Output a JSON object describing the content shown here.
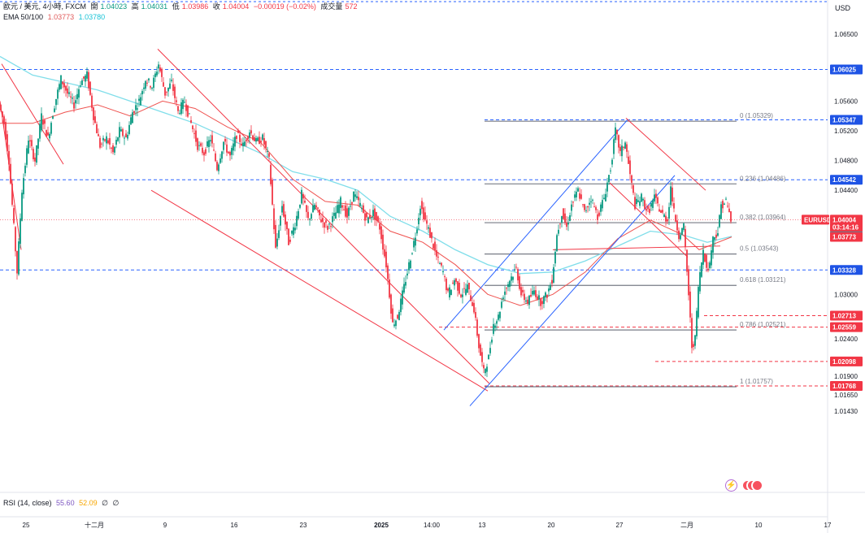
{
  "header": {
    "symbol": "歐元 / 美元, 4小時, FXCM",
    "open_label": "開",
    "open": "1.04023",
    "high_label": "高",
    "high": "1.04031",
    "low_label": "低",
    "low": "1.03986",
    "close_label": "收",
    "close": "1.04004",
    "change": "−0.00019 (−0.02%)",
    "volume_label": "成交量",
    "volume": "572",
    "ema_label": "EMA 50/100",
    "ema50": "1.03773",
    "ema100": "1.03780",
    "currency": "USD"
  },
  "rsi": {
    "label": "RSI (14, close)",
    "value1": "55.60",
    "value2": "52.09",
    "value3": "∅",
    "value4": "∅"
  },
  "colors": {
    "up": "#089981",
    "down": "#f23645",
    "ema50": "#ef5350",
    "ema100": "#80deea",
    "trend_red": "#f23645",
    "trend_blue": "#2962ff",
    "level_blue": "#2962ff",
    "fib": "#787b86"
  },
  "icons": [
    "lightning-icon",
    "red-dots-icon"
  ],
  "chart_data": {
    "type": "candlestick",
    "symbol": "EURUSD",
    "timeframe": "4h",
    "ylim": [
      1.013,
      1.067
    ],
    "y_ticks": [
      "1.06500",
      "1.06025",
      "1.05600",
      "1.05347",
      "1.05200",
      "1.04800",
      "1.04542",
      "1.04400",
      "1.04004",
      "1.03780",
      "1.03773",
      "1.03328",
      "1.03000",
      "1.02713",
      "1.02559",
      "1.02400",
      "1.02098",
      "1.01900",
      "1.01768",
      "1.01650",
      "1.01430"
    ],
    "highlighted_labels": [
      {
        "text": "1.06025",
        "value": 1.06025,
        "color": "#1e53e5"
      },
      {
        "text": "1.05347",
        "value": 1.05347,
        "color": "#1e53e5"
      },
      {
        "text": "1.04542",
        "value": 1.04542,
        "color": "#1e53e5"
      },
      {
        "text": "EURUSD",
        "value": 1.04004,
        "color": "#f23645"
      },
      {
        "text": "1.04004",
        "value": 1.04004,
        "color": "#f23645"
      },
      {
        "text": "03:14:16",
        "value": 1.03905,
        "color": "#f23645"
      },
      {
        "text": "1.03780",
        "value": 1.0378,
        "color": "#00acc1"
      },
      {
        "text": "1.03773",
        "value": 1.03773,
        "color": "#f23645"
      },
      {
        "text": "1.03328",
        "value": 1.03328,
        "color": "#1e53e5"
      },
      {
        "text": "1.02713",
        "value": 1.02713,
        "color": "#f23645"
      },
      {
        "text": "1.02559",
        "value": 1.02559,
        "color": "#f23645"
      },
      {
        "text": "1.02098",
        "value": 1.02098,
        "color": "#f23645"
      },
      {
        "text": "1.01768",
        "value": 1.01768,
        "color": "#f23645"
      }
    ],
    "x_labels": [
      "25",
      "十二月",
      "9",
      "16",
      "23",
      "2025",
      "14:00",
      "13",
      "20",
      "27",
      "二月",
      "10",
      "17"
    ],
    "horizontal_levels": [
      {
        "value": 1.06025,
        "style": "dashed",
        "color": "#2962ff"
      },
      {
        "value": 1.05347,
        "style": "dashed",
        "color": "#2962ff"
      },
      {
        "value": 1.04542,
        "style": "dashed",
        "color": "#2962ff"
      },
      {
        "value": 1.03328,
        "style": "dashed",
        "color": "#2962ff"
      },
      {
        "value": 1.02713,
        "style": "dashed",
        "color": "#f23645"
      },
      {
        "value": 1.02559,
        "style": "dashed",
        "color": "#f23645"
      },
      {
        "value": 1.02098,
        "style": "dashed",
        "color": "#f23645"
      },
      {
        "value": 1.01768,
        "style": "dashed",
        "color": "#f23645"
      }
    ],
    "fibonacci": [
      {
        "ratio": "0",
        "label": "0 (1.05329)",
        "value": 1.05329
      },
      {
        "ratio": "0.236",
        "label": "0.236 (1.04486)",
        "value": 1.04486
      },
      {
        "ratio": "0.382",
        "label": "0.382 (1.03964)",
        "value": 1.03964
      },
      {
        "ratio": "0.5",
        "label": "0.5 (1.03543)",
        "value": 1.03543
      },
      {
        "ratio": "0.618",
        "label": "0.618 (1.03121)",
        "value": 1.03121
      },
      {
        "ratio": "0.786",
        "label": "0.786 (1.02521)",
        "value": 1.02521
      },
      {
        "ratio": "1",
        "label": "1 (1.01757)",
        "value": 1.01757
      }
    ],
    "price_path": [
      [
        0,
        1.0555
      ],
      [
        6,
        1.053
      ],
      [
        12,
        1.048
      ],
      [
        18,
        1.039
      ],
      [
        22,
        1.033
      ],
      [
        28,
        1.044
      ],
      [
        36,
        1.051
      ],
      [
        44,
        1.048
      ],
      [
        52,
        1.054
      ],
      [
        60,
        1.051
      ],
      [
        68,
        1.0555
      ],
      [
        76,
        1.059
      ],
      [
        84,
        1.057
      ],
      [
        92,
        1.0555
      ],
      [
        100,
        1.0585
      ],
      [
        108,
        1.0595
      ],
      [
        116,
        1.054
      ],
      [
        124,
        1.05
      ],
      [
        132,
        1.051
      ],
      [
        140,
        1.049
      ],
      [
        148,
        1.052
      ],
      [
        156,
        1.051
      ],
      [
        164,
        1.0545
      ],
      [
        172,
        1.056
      ],
      [
        180,
        1.059
      ],
      [
        188,
        1.058
      ],
      [
        196,
        1.061
      ],
      [
        204,
        1.057
      ],
      [
        212,
        1.0585
      ],
      [
        220,
        1.0545
      ],
      [
        228,
        1.056
      ],
      [
        236,
        1.053
      ],
      [
        244,
        1.05
      ],
      [
        252,
        1.049
      ],
      [
        260,
        1.051
      ],
      [
        268,
        1.047
      ],
      [
        276,
        1.0505
      ],
      [
        284,
        1.0485
      ],
      [
        292,
        1.0515
      ],
      [
        300,
        1.05
      ],
      [
        308,
        1.052
      ],
      [
        316,
        1.0505
      ],
      [
        324,
        1.051
      ],
      [
        332,
        1.048
      ],
      [
        340,
        1.036
      ],
      [
        348,
        1.042
      ],
      [
        356,
        1.037
      ],
      [
        364,
        1.0395
      ],
      [
        372,
        1.0435
      ],
      [
        380,
        1.04
      ],
      [
        388,
        1.042
      ],
      [
        396,
        1.04
      ],
      [
        404,
        1.039
      ],
      [
        412,
        1.0405
      ],
      [
        420,
        1.0425
      ],
      [
        428,
        1.0405
      ],
      [
        436,
        1.0435
      ],
      [
        444,
        1.042
      ],
      [
        452,
        1.04
      ],
      [
        460,
        1.041
      ],
      [
        468,
        1.039
      ],
      [
        476,
        1.034
      ],
      [
        484,
        1.026
      ],
      [
        490,
        1.027
      ],
      [
        496,
        1.03
      ],
      [
        504,
        1.034
      ],
      [
        512,
        1.038
      ],
      [
        518,
        1.042
      ],
      [
        524,
        1.04
      ],
      [
        530,
        1.038
      ],
      [
        538,
        1.035
      ],
      [
        546,
        1.033
      ],
      [
        552,
        1.03
      ],
      [
        560,
        1.032
      ],
      [
        568,
        1.03
      ],
      [
        576,
        1.031
      ],
      [
        584,
        1.028
      ],
      [
        590,
        1.023
      ],
      [
        596,
        1.0195
      ],
      [
        602,
        1.0215
      ],
      [
        608,
        1.026
      ],
      [
        614,
        1.027
      ],
      [
        620,
        1.03
      ],
      [
        628,
        1.032
      ],
      [
        636,
        1.0335
      ],
      [
        642,
        1.03
      ],
      [
        650,
        1.029
      ],
      [
        658,
        1.0305
      ],
      [
        666,
        1.029
      ],
      [
        674,
        1.03
      ],
      [
        680,
        1.032
      ],
      [
        686,
        1.038
      ],
      [
        692,
        1.041
      ],
      [
        698,
        1.039
      ],
      [
        704,
        1.042
      ],
      [
        712,
        1.044
      ],
      [
        720,
        1.041
      ],
      [
        728,
        1.043
      ],
      [
        736,
        1.0405
      ],
      [
        744,
        1.043
      ],
      [
        752,
        1.047
      ],
      [
        758,
        1.052
      ],
      [
        764,
        1.049
      ],
      [
        770,
        1.0505
      ],
      [
        776,
        1.046
      ],
      [
        782,
        1.042
      ],
      [
        790,
        1.043
      ],
      [
        798,
        1.041
      ],
      [
        806,
        1.043
      ],
      [
        814,
        1.041
      ],
      [
        822,
        1.04
      ],
      [
        826,
        1.0445
      ],
      [
        830,
        1.041
      ],
      [
        836,
        1.038
      ],
      [
        842,
        1.039
      ],
      [
        848,
        1.03
      ],
      [
        852,
        1.023
      ],
      [
        856,
        1.024
      ],
      [
        860,
        1.031
      ],
      [
        866,
        1.036
      ],
      [
        872,
        1.033
      ],
      [
        878,
        1.0375
      ],
      [
        884,
        1.0385
      ],
      [
        888,
        1.042
      ],
      [
        894,
        1.0425
      ],
      [
        900,
        1.04004
      ]
    ],
    "ema50": [
      [
        0,
        1.053
      ],
      [
        40,
        1.053
      ],
      [
        80,
        1.0545
      ],
      [
        120,
        1.0555
      ],
      [
        160,
        1.054
      ],
      [
        200,
        1.056
      ],
      [
        240,
        1.055
      ],
      [
        280,
        1.0525
      ],
      [
        320,
        1.0505
      ],
      [
        360,
        1.0455
      ],
      [
        400,
        1.0425
      ],
      [
        440,
        1.042
      ],
      [
        480,
        1.0385
      ],
      [
        520,
        1.037
      ],
      [
        560,
        1.034
      ],
      [
        600,
        1.03
      ],
      [
        640,
        1.0285
      ],
      [
        680,
        1.03
      ],
      [
        720,
        1.033
      ],
      [
        760,
        1.0375
      ],
      [
        800,
        1.04
      ],
      [
        840,
        1.038
      ],
      [
        860,
        1.036
      ],
      [
        900,
        1.03773
      ]
    ],
    "ema100": [
      [
        0,
        1.062
      ],
      [
        40,
        1.0595
      ],
      [
        80,
        1.0585
      ],
      [
        120,
        1.0575
      ],
      [
        160,
        1.056
      ],
      [
        200,
        1.0545
      ],
      [
        240,
        1.053
      ],
      [
        280,
        1.051
      ],
      [
        320,
        1.049
      ],
      [
        360,
        1.0465
      ],
      [
        400,
        1.0455
      ],
      [
        440,
        1.044
      ],
      [
        480,
        1.0405
      ],
      [
        520,
        1.0385
      ],
      [
        560,
        1.036
      ],
      [
        600,
        1.034
      ],
      [
        640,
        1.0328
      ],
      [
        680,
        1.033
      ],
      [
        720,
        1.0345
      ],
      [
        760,
        1.0365
      ],
      [
        800,
        1.0385
      ],
      [
        840,
        1.038
      ],
      [
        870,
        1.037
      ],
      [
        900,
        1.0378
      ]
    ],
    "trendlines": [
      {
        "color": "#f23645",
        "x1": 194,
        "y1": 1.063,
        "x2": 602,
        "y2": 1.018
      },
      {
        "color": "#f23645",
        "x1": 186,
        "y1": 1.044,
        "x2": 600,
        "y2": 1.017
      },
      {
        "color": "#f23645",
        "x1": 2,
        "y1": 1.061,
        "x2": 78,
        "y2": 1.0475
      },
      {
        "color": "#f23645",
        "x1": 0,
        "y1": 1.056,
        "x2": 26,
        "y2": 1.036
      },
      {
        "color": "#2962ff",
        "x1": 546,
        "y1": 1.0252,
        "x2": 772,
        "y2": 1.0535
      },
      {
        "color": "#2962ff",
        "x1": 578,
        "y1": 1.015,
        "x2": 830,
        "y2": 1.046
      },
      {
        "color": "#f23645",
        "x1": 770,
        "y1": 1.0537,
        "x2": 868,
        "y2": 1.044
      },
      {
        "color": "#f23645",
        "x1": 750,
        "y1": 1.045,
        "x2": 846,
        "y2": 1.035
      },
      {
        "color": "#f23645",
        "x1": 680,
        "y1": 1.036,
        "x2": 886,
        "y2": 1.0365
      }
    ]
  }
}
